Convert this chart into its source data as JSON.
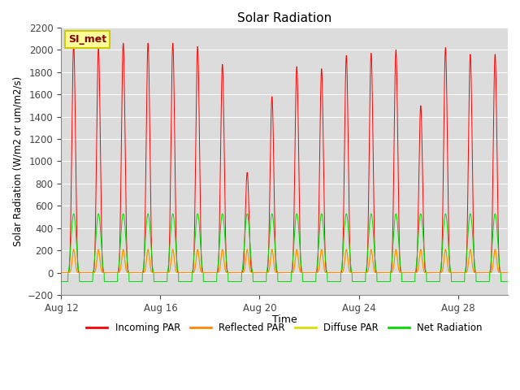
{
  "title": "Solar Radiation",
  "ylabel": "Solar Radiation (W/m2 or um/m2/s)",
  "xlabel": "Time",
  "ylim": [
    -200,
    2200
  ],
  "yticks": [
    -200,
    0,
    200,
    400,
    600,
    800,
    1000,
    1200,
    1400,
    1600,
    1800,
    2000,
    2200
  ],
  "xtick_days": [
    12,
    16,
    20,
    24,
    28
  ],
  "colors": {
    "incoming": "#FF0000",
    "reflected": "#FF8800",
    "diffuse": "#DDDD00",
    "net": "#00DD00"
  },
  "legend_labels": [
    "Incoming PAR",
    "Reflected PAR",
    "Diffuse PAR",
    "Net Radiation"
  ],
  "plot_bg_color": "#DCDCDC",
  "fig_bg_color": "#FFFFFF",
  "annotation_text": "SI_met",
  "annotation_color": "#880000",
  "annotation_bg": "#FFFF99",
  "annotation_border": "#CCCC00",
  "incoming_peaks": [
    2050,
    2020,
    2060,
    2060,
    2060,
    2030,
    1870,
    900,
    1580,
    1850,
    1830,
    1950,
    1970,
    2000,
    1500,
    2020,
    1960,
    1960
  ],
  "net_night": -80,
  "net_peak": 530,
  "refl_peak": 210,
  "diff_peak": 200,
  "points_per_day": 288,
  "n_days": 18,
  "spike_power": 4.0
}
